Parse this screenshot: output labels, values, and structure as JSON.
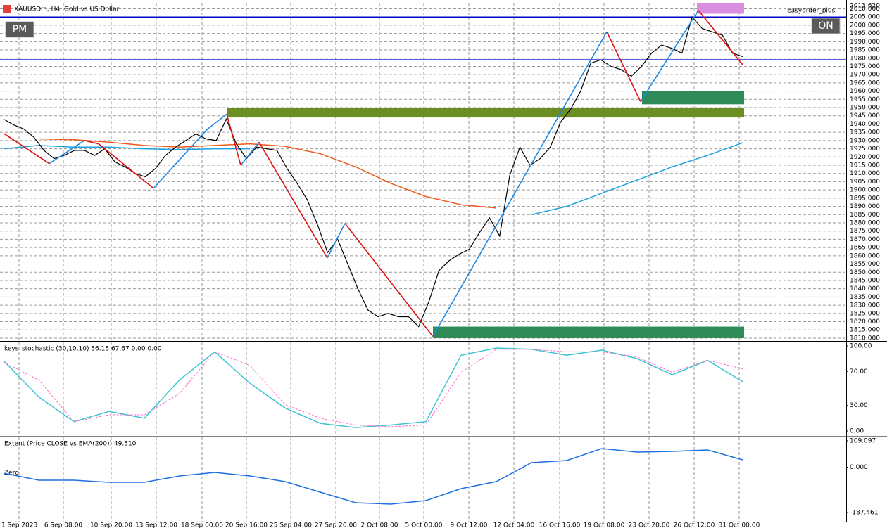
{
  "header": {
    "symbol": "XAUUSDm, H4:  Gold vs US Dollar",
    "buttons": [
      "PM",
      "ON"
    ],
    "expert": "Easyorder_plus"
  },
  "time_axis": {
    "labels": [
      "1 Sep 2023",
      "6 Sep 08:00",
      "10 Sep 20:00",
      "13 Sep 12:00",
      "18 Sep 00:00",
      "20 Sep 16:00",
      "25 Sep 04:00",
      "27 Sep 20:00",
      "2 Oct 08:00",
      "5 Oct 00:00",
      "9 Oct 12:00",
      "12 Oct 04:00",
      "16 Oct 16:00",
      "19 Oct 08:00",
      "23 Oct 20:00",
      "26 Oct 12:00",
      "31 Oct 00:00"
    ]
  },
  "chart_data": [
    {
      "type": "line",
      "ylim": [
        1808.7,
        2013.62
      ],
      "grid": true,
      "yticks": [
        {
          "value": 2013.62,
          "label": "2013.620"
        },
        {
          "value": 2010,
          "label": "2010.000"
        },
        {
          "value": 2005,
          "label": "2005.000"
        },
        {
          "value": 2000,
          "label": "2000.000"
        },
        {
          "value": 1995,
          "label": "1995.000"
        },
        {
          "value": 1990,
          "label": "1990.000"
        },
        {
          "value": 1985,
          "label": "1985.000"
        },
        {
          "value": 1980,
          "label": "1980.000"
        },
        {
          "value": 1975,
          "label": "1975.000"
        },
        {
          "value": 1970,
          "label": "1970.000"
        },
        {
          "value": 1965,
          "label": "1965.000"
        },
        {
          "value": 1960,
          "label": "1960.000"
        },
        {
          "value": 1955,
          "label": "1955.000"
        },
        {
          "value": 1950,
          "label": "1950.000"
        },
        {
          "value": 1945,
          "label": "1945.000"
        },
        {
          "value": 1940,
          "label": "1940.000"
        },
        {
          "value": 1935,
          "label": "1935.000"
        },
        {
          "value": 1930,
          "label": "1930.000"
        },
        {
          "value": 1925,
          "label": "1925.000"
        },
        {
          "value": 1920,
          "label": "1920.000"
        },
        {
          "value": 1915,
          "label": "1915.000"
        },
        {
          "value": 1910,
          "label": "1910.000"
        },
        {
          "value": 1905,
          "label": "1905.000"
        },
        {
          "value": 1900,
          "label": "1900.000"
        },
        {
          "value": 1895,
          "label": "1895.000"
        },
        {
          "value": 1890,
          "label": "1890.000"
        },
        {
          "value": 1885,
          "label": "1885.000"
        },
        {
          "value": 1880,
          "label": "1880.000"
        },
        {
          "value": 1875,
          "label": "1875.000"
        },
        {
          "value": 1870,
          "label": "1870.000"
        },
        {
          "value": 1865,
          "label": "1865.000"
        },
        {
          "value": 1860,
          "label": "1860.000"
        },
        {
          "value": 1855,
          "label": "1855.000"
        },
        {
          "value": 1850,
          "label": "1850.000"
        },
        {
          "value": 1845,
          "label": "1845.000"
        },
        {
          "value": 1840,
          "label": "1840.000"
        },
        {
          "value": 1835,
          "label": "1835.000"
        },
        {
          "value": 1830,
          "label": "1830.000"
        },
        {
          "value": 1825,
          "label": "1825.000"
        },
        {
          "value": 1820,
          "label": "1820.000"
        },
        {
          "value": 1815,
          "label": "1815.000"
        },
        {
          "value": 1810,
          "label": "1810.000"
        }
      ],
      "price": {
        "color": "#000000",
        "values": [
          1943,
          1939.5,
          1937,
          1932,
          1924,
          1919,
          1921,
          1924,
          1924,
          1921,
          1925,
          1917,
          1914,
          1910,
          1908,
          1913,
          1921,
          1926,
          1930,
          1934,
          1931,
          1930,
          1943,
          1928,
          1919,
          1926,
          1925,
          1924,
          1913,
          1904,
          1894,
          1879,
          1862,
          1870,
          1855,
          1840,
          1827,
          1823,
          1825,
          1823,
          1823,
          1817,
          1832,
          1851,
          1857,
          1861,
          1864,
          1874,
          1883,
          1872,
          1909,
          1926,
          1915,
          1919,
          1926,
          1941,
          1949,
          1960,
          1977,
          1979,
          1975,
          1973,
          1969,
          1975,
          1983,
          1988,
          1986,
          1983,
          2005,
          1998,
          1996,
          1994,
          1983,
          1981
        ]
      },
      "series": [
        {
          "color": "#f05a1e",
          "values": [
            null,
            1931,
            1930.5,
            1929,
            1927,
            1926,
            1927,
            1928,
            1926.5,
            1922,
            1914,
            1904,
            1896,
            1891,
            1889,
            null,
            null,
            null,
            null,
            null,
            null,
            null
          ]
        },
        {
          "color": "#1fa3e0",
          "values": [
            1925,
            1927,
            1926,
            1926,
            1925,
            1924.5,
            1925,
            1925,
            null,
            null,
            null,
            null,
            null,
            null,
            null,
            1885,
            1890,
            1898,
            1906,
            1914,
            1921,
            1928.6
          ]
        }
      ],
      "zigzag": {
        "up_color": "#1e88e5",
        "down_color": "#e01010",
        "values": [
          1934.4,
          1916,
          1930,
          1928,
          1901,
          1937,
          1946,
          1915,
          1929,
          1858.7,
          1879.7,
          1811,
          1996,
          1953.6,
          2009,
          1976
        ]
      },
      "hlines": {
        "color": "#0000c8",
        "values": [
          2005,
          1979
        ]
      },
      "zones": [
        {
          "low": 2007,
          "high": 2013.6,
          "color": "#d98ee0"
        },
        {
          "low": 1952,
          "high": 1960,
          "color": "#2e8b57"
        },
        {
          "low": 1944,
          "high": 1950,
          "color": "#6b8e23"
        },
        {
          "low": 1810,
          "high": 1817,
          "color": "#2e8b57"
        }
      ]
    },
    {
      "type": "line",
      "title": "keys_stochastic (30,10,10) 56.15 67.67 0.00 0.00",
      "ylim": [
        -5.8,
        104.1
      ],
      "yticks": [
        {
          "value": 100,
          "label": "100.00"
        },
        {
          "value": 70,
          "label": "70.00"
        },
        {
          "value": 30,
          "label": "30.00"
        },
        {
          "value": 0,
          "label": "0.00"
        }
      ],
      "series": [
        {
          "color": "#3cc4d4",
          "values": [
            82.6,
            40,
            11,
            23,
            15,
            60,
            93,
            56,
            27,
            9,
            4,
            7,
            11,
            89,
            97.5,
            96,
            89,
            95,
            85,
            66,
            83,
            58
          ]
        },
        {
          "color": "#ff69c8",
          "dashed": true,
          "values": [
            81,
            60,
            11,
            19,
            19,
            44,
            93,
            77,
            31,
            15,
            7,
            5,
            7,
            69,
            96,
            96,
            93,
            93,
            87,
            69,
            83,
            73
          ]
        }
      ]
    },
    {
      "type": "line",
      "title": "Extent (Price CLOSE vs EMA(200)) 49.510",
      "zero_label": "Zero",
      "ylim": [
        -225.2,
        123.6
      ],
      "yticks": [
        {
          "value": 109.097,
          "label": "109.097"
        },
        {
          "value": 0,
          "label": "0.000"
        },
        {
          "value": -187.461,
          "label": "-187.461"
        }
      ],
      "series": [
        {
          "color": "#1e6fe0",
          "values": [
            -24.6,
            -53.7,
            -53.7,
            -62.4,
            -62.4,
            -36.2,
            -21.7,
            -36.2,
            -59.5,
            -103.1,
            -146.7,
            -152.5,
            -138,
            -88.6,
            -59.5,
            19,
            27.7,
            77.1,
            62.6,
            65.5,
            71.3,
            30.6
          ]
        }
      ]
    }
  ]
}
